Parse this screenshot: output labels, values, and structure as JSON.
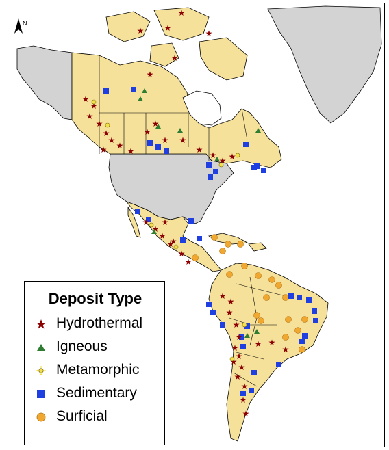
{
  "north_label": "N",
  "legend": {
    "title": "Deposit Type",
    "items": [
      {
        "label": "Hydrothermal",
        "symbol": "star",
        "color": "#8b0000"
      },
      {
        "label": "Igneous",
        "symbol": "triangle",
        "color": "#2e7d32"
      },
      {
        "label": "Metamorphic",
        "symbol": "burst",
        "color": "#f4e04d"
      },
      {
        "label": "Sedimentary",
        "symbol": "square",
        "color": "#1f3fe0"
      },
      {
        "label": "Surficial",
        "symbol": "circle",
        "color": "#f0a830"
      }
    ]
  },
  "colors": {
    "land_highlight": "#f5e19a",
    "land_other": "#d3d3d3",
    "water": "#ffffff",
    "border": "#000000"
  }
}
